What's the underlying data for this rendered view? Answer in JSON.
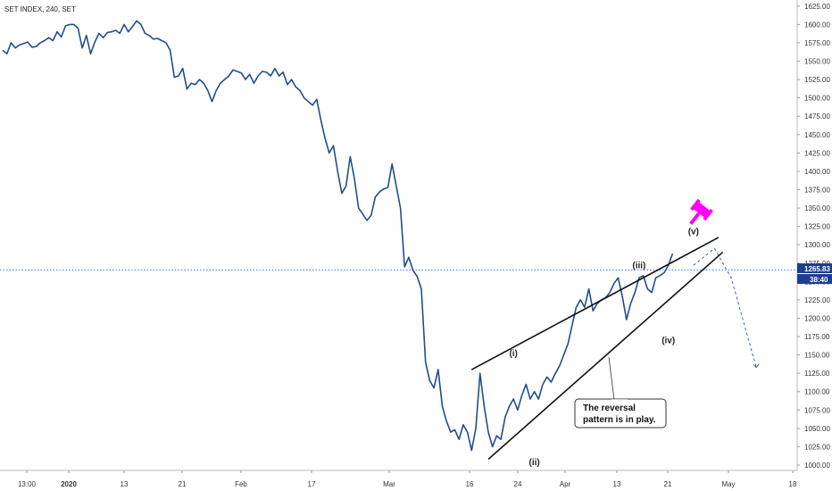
{
  "chart_data": {
    "type": "line",
    "title": "SET INDEX, 240, SET",
    "ylim": [
      990,
      1635
    ],
    "y_ticks": [
      1000,
      1025,
      1050,
      1075,
      1100,
      1125,
      1150,
      1175,
      1200,
      1225,
      1250,
      1275,
      1300,
      1325,
      1350,
      1375,
      1400,
      1425,
      1450,
      1475,
      1500,
      1525,
      1550,
      1575,
      1600,
      1625
    ],
    "x_ticks": [
      "13:00",
      "2020",
      "13",
      "21",
      "Feb",
      "17",
      "Mar",
      "16",
      "24",
      "Apr",
      "13",
      "21",
      "May",
      "18"
    ],
    "series": [
      {
        "color": "#1f4e8c",
        "values": [
          1565,
          1560,
          1575,
          1568,
          1572,
          1574,
          1576,
          1569,
          1570,
          1575,
          1578,
          1582,
          1578,
          1590,
          1583,
          1598,
          1600,
          1600,
          1595,
          1568,
          1585,
          1560,
          1576,
          1588,
          1582,
          1589,
          1590,
          1592,
          1588,
          1600,
          1590,
          1597,
          1605,
          1600,
          1588,
          1585,
          1580,
          1581,
          1578,
          1575,
          1565,
          1528,
          1530,
          1540,
          1512,
          1520,
          1518,
          1525,
          1520,
          1510,
          1495,
          1510,
          1520,
          1525,
          1530,
          1538,
          1536,
          1534,
          1525,
          1532,
          1520,
          1530,
          1536,
          1535,
          1530,
          1540,
          1530,
          1535,
          1518,
          1525,
          1515,
          1510,
          1500,
          1495,
          1490,
          1498,
          1470,
          1445,
          1425,
          1435,
          1400,
          1370,
          1380,
          1420,
          1390,
          1350,
          1342,
          1333,
          1340,
          1365,
          1372,
          1376,
          1378,
          1410,
          1380,
          1350,
          1270,
          1283,
          1265,
          1257,
          1240,
          1140,
          1115,
          1105,
          1130,
          1080,
          1060,
          1045,
          1048,
          1035,
          1055,
          1045,
          1020,
          1050,
          1125,
          1080,
          1045,
          1025,
          1040,
          1035,
          1065,
          1080,
          1090,
          1075,
          1095,
          1110,
          1090,
          1100,
          1090,
          1110,
          1120,
          1113,
          1125,
          1135,
          1150,
          1165,
          1190,
          1215,
          1225,
          1215,
          1240,
          1210,
          1220,
          1225,
          1228,
          1235,
          1247,
          1255,
          1230,
          1198,
          1220,
          1235,
          1255,
          1258,
          1240,
          1235,
          1255,
          1258,
          1262,
          1272,
          1288
        ]
      }
    ],
    "horizontal_line": {
      "value": 1265.83,
      "label": "1265.83",
      "color": "#2962ff"
    },
    "countdown_badge": "38:40",
    "trendlines": [
      {
        "name": "upper",
        "from": {
          "i": 112,
          "v": 1130
        },
        "to": {
          "i": 171,
          "v": 1310
        }
      },
      {
        "name": "lower",
        "from": {
          "i": 116,
          "v": 1008
        },
        "to": {
          "i": 172,
          "v": 1290
        }
      }
    ],
    "wave_labels": [
      {
        "text": "(i)",
        "i": 122,
        "v": 1148
      },
      {
        "text": "(ii)",
        "i": 127,
        "v": 1000
      },
      {
        "text": "(iii)",
        "i": 152,
        "v": 1268
      },
      {
        "text": "(iv)",
        "i": 159,
        "v": 1166
      },
      {
        "text": "(v)",
        "i": 165,
        "v": 1314
      }
    ],
    "projection": [
      {
        "i": 165,
        "v": 1272
      },
      {
        "i": 170,
        "v": 1295
      },
      {
        "i": 174,
        "v": 1255
      },
      {
        "i": 180,
        "v": 1133
      }
    ],
    "callout": {
      "lines": [
        "The reversal",
        "pattern is in play."
      ]
    },
    "accent_colors": {
      "projection": "#3a5fcd",
      "marker": "#ff00ff"
    }
  }
}
